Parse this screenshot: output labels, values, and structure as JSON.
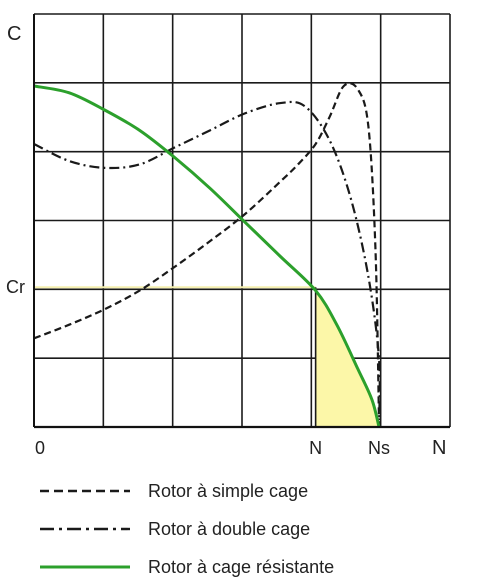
{
  "chart_data": {
    "type": "line",
    "title": "",
    "xlabel": "N",
    "ylabel": "C",
    "xlim": [
      0,
      100
    ],
    "ylim": [
      0,
      100
    ],
    "grid": true,
    "x_tick_labels": [
      {
        "x": 0,
        "label": "0"
      },
      {
        "x": 80,
        "label": "N"
      },
      {
        "x": 98,
        "label": "Ns"
      }
    ],
    "y_tick_labels": [
      {
        "y": 41,
        "label": "Cr"
      }
    ],
    "reference_value": {
      "name": "Cr",
      "y": 41,
      "x_at_N": 80
    },
    "shaded_region": {
      "x_from": 80,
      "x_to": 98,
      "color": "#fcf7a8"
    },
    "series": [
      {
        "name": "Rotor à simple cage",
        "style": "dashed",
        "color": "#1a1a1a",
        "points": [
          [
            0,
            26
          ],
          [
            10,
            30
          ],
          [
            20,
            34.5
          ],
          [
            30,
            40
          ],
          [
            40,
            47
          ],
          [
            50,
            54.5
          ],
          [
            60,
            62.5
          ],
          [
            70,
            72
          ],
          [
            75,
            77
          ],
          [
            80,
            83
          ],
          [
            84,
            91
          ],
          [
            88,
            100
          ],
          [
            92,
            99
          ],
          [
            95,
            88
          ],
          [
            97,
            52
          ],
          [
            98,
            2
          ]
        ]
      },
      {
        "name": "Rotor à double cage",
        "style": "dashdot",
        "color": "#1a1a1a",
        "points": [
          [
            0,
            83
          ],
          [
            10,
            78
          ],
          [
            20,
            76
          ],
          [
            30,
            77
          ],
          [
            40,
            82
          ],
          [
            50,
            87
          ],
          [
            60,
            92
          ],
          [
            70,
            95
          ],
          [
            77,
            94
          ],
          [
            84,
            84
          ],
          [
            90,
            67
          ],
          [
            95,
            44
          ],
          [
            98,
            20
          ],
          [
            98,
            0
          ]
        ]
      },
      {
        "name": "Rotor à cage résistante",
        "style": "solid",
        "color": "#2ca02c",
        "points": [
          [
            0,
            100
          ],
          [
            10,
            98
          ],
          [
            20,
            93
          ],
          [
            30,
            87
          ],
          [
            40,
            79
          ],
          [
            50,
            70
          ],
          [
            60,
            60
          ],
          [
            70,
            50
          ],
          [
            80,
            40
          ],
          [
            86,
            30
          ],
          [
            92,
            17
          ],
          [
            96,
            8
          ],
          [
            98,
            0
          ]
        ]
      }
    ],
    "legend": {
      "placement": "bottom",
      "items": [
        {
          "label": "Rotor à simple cage",
          "style": "dashed"
        },
        {
          "label": "Rotor à double cage",
          "style": "dashdot"
        },
        {
          "label": "Rotor à cage résistante",
          "style": "solid"
        }
      ]
    }
  }
}
